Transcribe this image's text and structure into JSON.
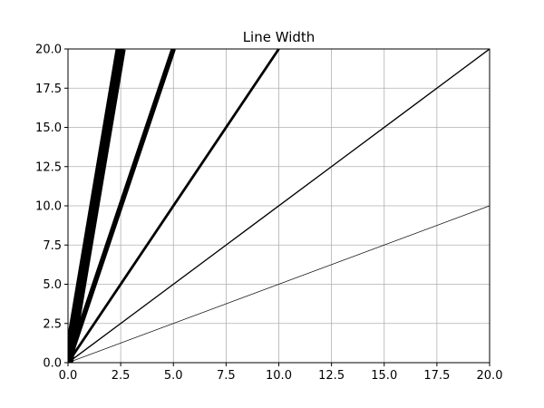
{
  "chart_data": {
    "type": "line",
    "title": "Line Width",
    "xlabel": "",
    "ylabel": "",
    "xlim": [
      0,
      20
    ],
    "ylim": [
      0,
      20
    ],
    "grid": true,
    "x_ticks": [
      0,
      2.5,
      5,
      7.5,
      10,
      12.5,
      15,
      17.5,
      20
    ],
    "y_ticks": [
      0,
      2.5,
      5,
      7.5,
      10,
      12.5,
      15,
      17.5,
      20
    ],
    "x_tick_labels": [
      "0.0",
      "2.5",
      "5.0",
      "7.5",
      "10.0",
      "12.5",
      "15.0",
      "17.5",
      "20.0"
    ],
    "y_tick_labels": [
      "0.0",
      "2.5",
      "5.0",
      "7.5",
      "10.0",
      "12.5",
      "15.0",
      "17.5",
      "20.0"
    ],
    "series": [
      {
        "x": [
          0,
          20
        ],
        "y": [
          0,
          10
        ],
        "color": "#000000",
        "linewidth": 0.5
      },
      {
        "x": [
          0,
          20
        ],
        "y": [
          0,
          20
        ],
        "color": "#000000",
        "linewidth": 1
      },
      {
        "x": [
          0,
          10
        ],
        "y": [
          0,
          20
        ],
        "color": "#000000",
        "linewidth": 2
      },
      {
        "x": [
          0,
          5
        ],
        "y": [
          0,
          20
        ],
        "color": "#000000",
        "linewidth": 4
      },
      {
        "x": [
          0,
          2.5
        ],
        "y": [
          0,
          20
        ],
        "color": "#000000",
        "linewidth": 8
      }
    ]
  }
}
